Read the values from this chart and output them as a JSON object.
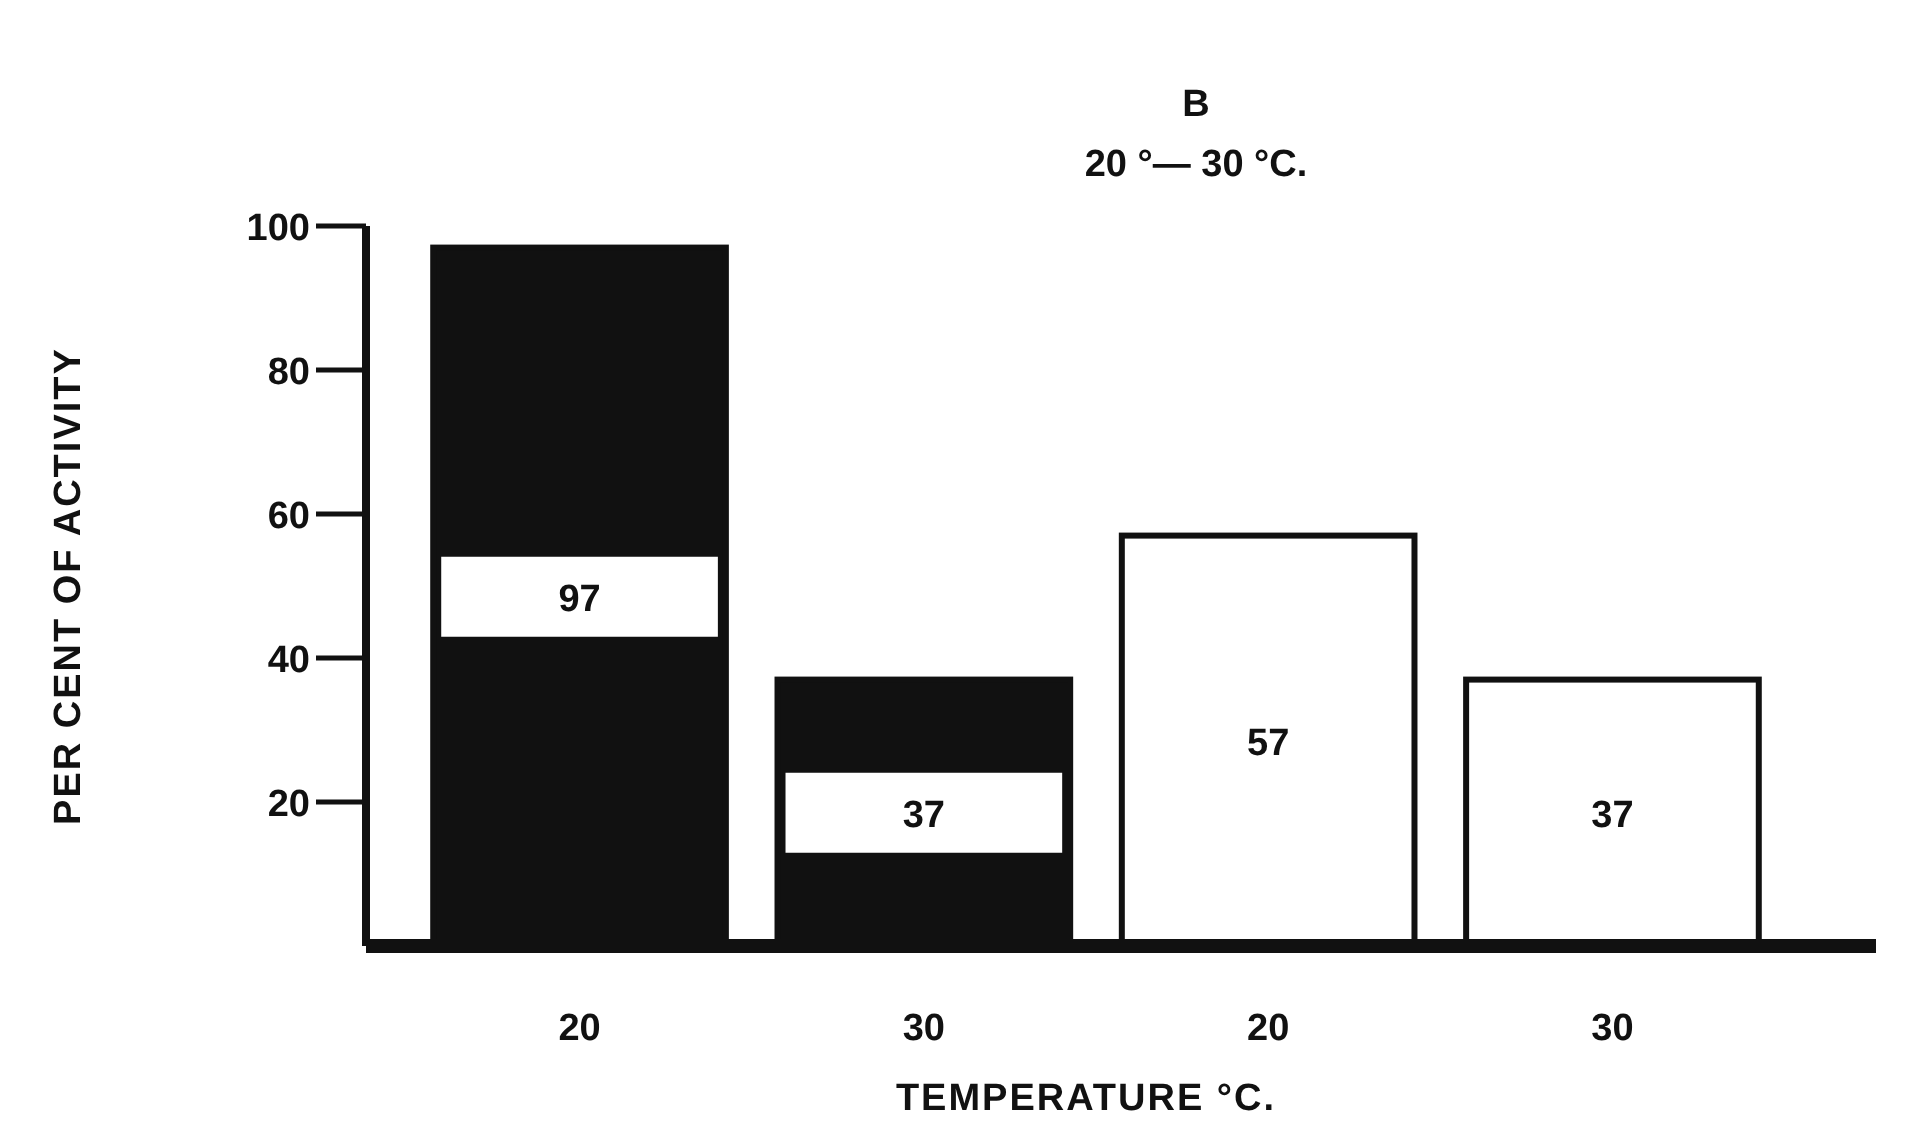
{
  "chart_data": {
    "type": "bar",
    "title": "B",
    "subtitle": "20 °— 30 °C.",
    "xlabel": "TEMPERATURE °C.",
    "ylabel": "PER CENT OF ACTIVITY",
    "categories": [
      "20",
      "30",
      "20",
      "30"
    ],
    "values": [
      97,
      37,
      57,
      37
    ],
    "colors": [
      "#111111",
      "#111111",
      "#ffffff",
      "#ffffff"
    ],
    "ylim": [
      0,
      100
    ],
    "yticks": [
      20,
      40,
      60,
      80,
      100
    ],
    "data_labels": true,
    "grid": false
  }
}
